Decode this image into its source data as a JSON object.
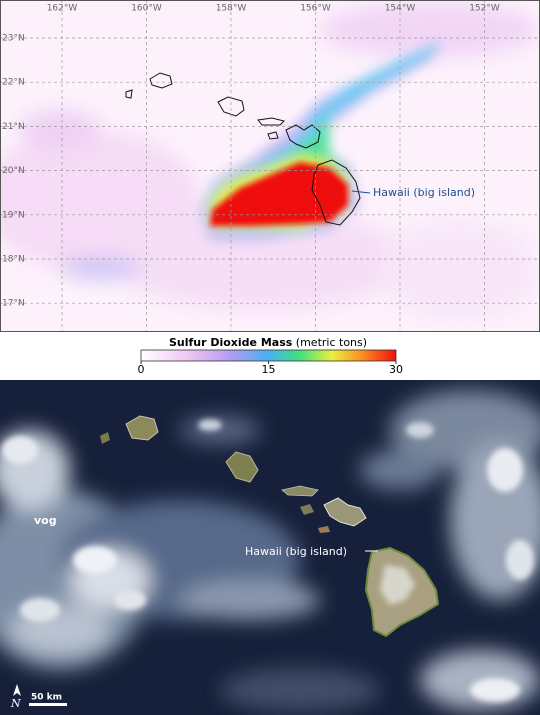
{
  "so2_map": {
    "lon_labels": [
      "162°W",
      "160°W",
      "158°W",
      "156°W",
      "154°W",
      "152°W"
    ],
    "lat_labels": [
      "23°N",
      "22°N",
      "21°N",
      "20°N",
      "19°N",
      "18°N",
      "17°N"
    ],
    "annotation": "Hawaii (big island)"
  },
  "colorbar": {
    "title": "Sulfur Dioxide Mass",
    "units": "(metric tons)",
    "ticks": [
      0,
      15,
      30
    ]
  },
  "photo": {
    "vog_label": "vog",
    "island_label": "Hawaii (big island)",
    "north": "N",
    "scale": "50 km"
  }
}
